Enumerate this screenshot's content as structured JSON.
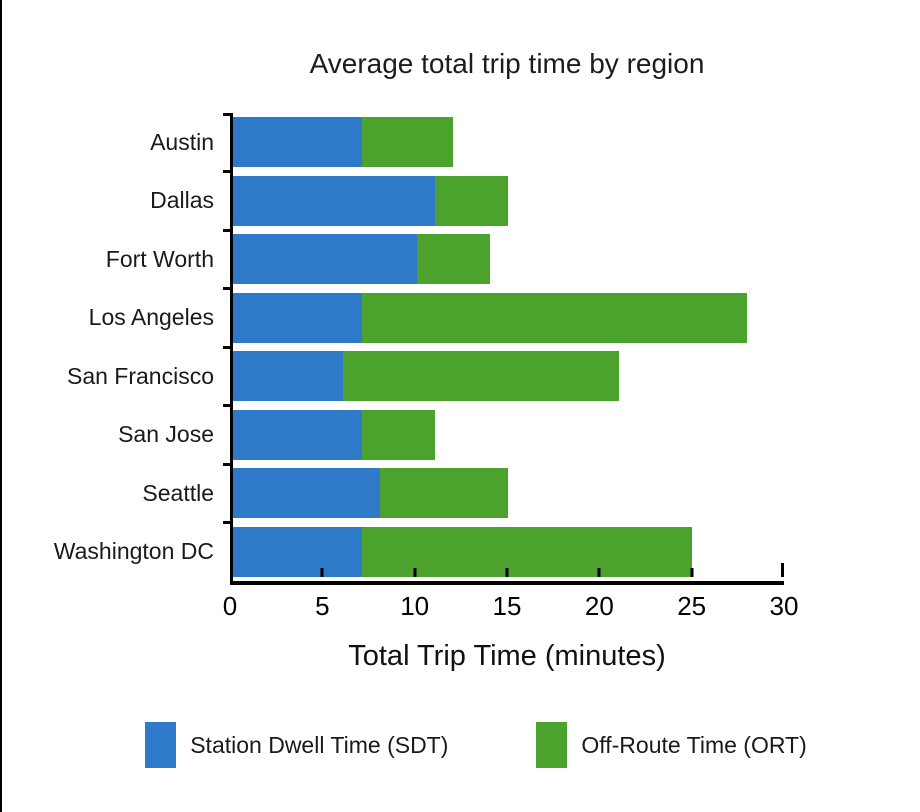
{
  "chart_data": {
    "type": "bar",
    "orientation": "horizontal",
    "stacked": true,
    "title": "Average total trip time by region",
    "xlabel": "Total Trip Time (minutes)",
    "ylabel": "",
    "categories": [
      "Austin",
      "Dallas",
      "Fort Worth",
      "Los Angeles",
      "San Francisco",
      "San Jose",
      "Seattle",
      "Washington DC"
    ],
    "series": [
      {
        "name": "Station Dwell Time (SDT)",
        "color": "#2e7ac8",
        "values": [
          7,
          11,
          10,
          7,
          6,
          7,
          8,
          7
        ]
      },
      {
        "name": "Off-Route Time (ORT)",
        "color": "#4ba32e",
        "values": [
          5,
          4,
          4,
          21,
          15,
          4,
          7,
          18
        ]
      }
    ],
    "totals": [
      12,
      15,
      14,
      28,
      21,
      11,
      15,
      25
    ],
    "xlim": [
      0,
      30
    ],
    "xticks": [
      0,
      5,
      10,
      15,
      20,
      25,
      30
    ],
    "grid": false,
    "axis_color": "#000000",
    "background_color": "#ffffff",
    "legend_position": "bottom"
  }
}
